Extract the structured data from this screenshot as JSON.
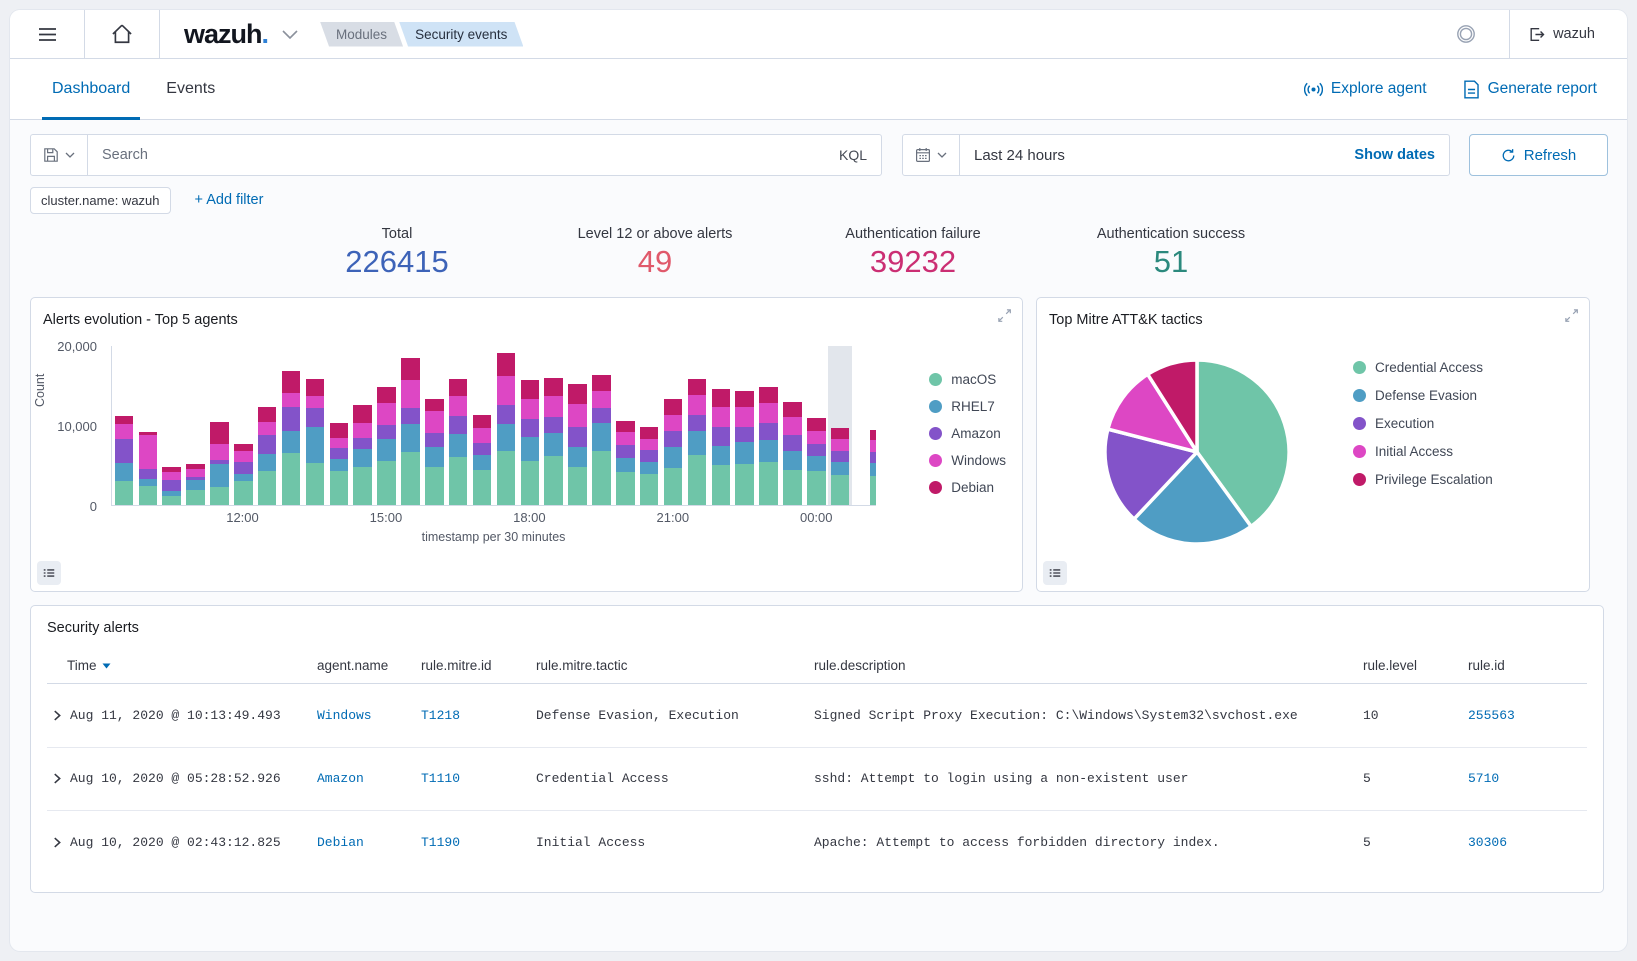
{
  "app": {
    "logo_text": "wazuh",
    "logo_dot": ".",
    "user_label": "wazuh"
  },
  "breadcrumbs": [
    {
      "label": "Modules"
    },
    {
      "label": "Security events"
    }
  ],
  "tabs": [
    {
      "label": "Dashboard",
      "active": true
    },
    {
      "label": "Events",
      "active": false
    }
  ],
  "header_actions": {
    "explore_agent": "Explore agent",
    "generate_report": "Generate report"
  },
  "search_bar": {
    "placeholder": "Search",
    "language": "KQL",
    "time_range": "Last 24 hours",
    "show_dates_label": "Show dates",
    "refresh_label": "Refresh"
  },
  "filter_bar": {
    "pill": "cluster.name: wazuh",
    "add_filter_label": "+ Add filter"
  },
  "stats": [
    {
      "label": "Total",
      "value": "226415",
      "color": "#3d63b8"
    },
    {
      "label": "Level 12 or above alerts",
      "value": "49",
      "color": "#e0596b"
    },
    {
      "label": "Authentication failure",
      "value": "39232",
      "color": "#cb2e73"
    },
    {
      "label": "Authentication success",
      "value": "51",
      "color": "#2b897d"
    }
  ],
  "panels": {
    "alerts_evolution": {
      "title": "Alerts evolution - Top 5 agents"
    },
    "mitre": {
      "title": "Top Mitre ATT&K tactics"
    }
  },
  "icons": {
    "menu": "hamburger",
    "home": "house",
    "chevron-down": "caret",
    "save-query": "floppy-disk",
    "calendar": "calendar",
    "refresh": "circular-arrow",
    "ring": "double-circle",
    "logout": "exit-door",
    "broadcast": "antenna",
    "report": "document",
    "expand": "diagonal-arrows",
    "legend-toggle": "list",
    "sort-desc": "triangle-down",
    "row-expand": "chevron-right",
    "page-next": "chevron-right-large"
  },
  "chart_data": [
    {
      "type": "bar",
      "stacked": true,
      "title": "Alerts evolution - Top 5 agents",
      "xlabel": "timestamp per 30 minutes",
      "ylabel": "Count",
      "ylim": [
        0,
        20000
      ],
      "ytick_labels": [
        "20,000",
        "10,000",
        "0"
      ],
      "grid": false,
      "legend_position": "right",
      "categories": [
        "09:30",
        "10:00",
        "10:30",
        "11:00",
        "11:30",
        "12:00",
        "12:30",
        "13:00",
        "13:30",
        "14:00",
        "14:30",
        "15:00",
        "15:30",
        "16:00",
        "16:30",
        "17:00",
        "17:30",
        "18:00",
        "18:30",
        "19:00",
        "19:30",
        "20:00",
        "20:30",
        "21:00",
        "21:30",
        "22:00",
        "22:30",
        "23:00",
        "23:30",
        "00:00",
        "00:30",
        "01:00"
      ],
      "x_ticks": [
        {
          "label": "12:00",
          "index": 5
        },
        {
          "label": "15:00",
          "index": 11
        },
        {
          "label": "18:00",
          "index": 17
        },
        {
          "label": "21:00",
          "index": 23
        },
        {
          "label": "00:00",
          "index": 29
        }
      ],
      "highlight_index": 30,
      "clipped_last": true,
      "series": [
        {
          "name": "macOS",
          "color": "#6fc5a8",
          "values": [
            3000,
            2400,
            1100,
            1900,
            2300,
            3000,
            4300,
            6500,
            5300,
            4200,
            4800,
            5500,
            6600,
            4800,
            6000,
            4400,
            6700,
            5500,
            6100,
            4700,
            6800,
            4100,
            3900,
            4600,
            6200,
            5000,
            5100,
            5400,
            4400,
            4200,
            3700,
            3600
          ]
        },
        {
          "name": "RHEL7",
          "color": "#4f9dc4",
          "values": [
            2200,
            900,
            700,
            1200,
            2800,
            900,
            2100,
            2700,
            4500,
            1600,
            2200,
            2800,
            3500,
            2500,
            2900,
            1800,
            3400,
            3000,
            2900,
            2500,
            3500,
            1800,
            1500,
            2600,
            3100,
            2400,
            2800,
            2700,
            2400,
            1900,
            1700,
            1600
          ]
        },
        {
          "name": "Amazon",
          "color": "#8353c9",
          "values": [
            3100,
            1200,
            1300,
            400,
            500,
            1500,
            2400,
            3000,
            2300,
            1300,
            1400,
            1700,
            2000,
            1700,
            2200,
            1600,
            2400,
            2300,
            2000,
            2600,
            1800,
            1600,
            1500,
            2000,
            1900,
            2300,
            1900,
            2100,
            1900,
            1500,
            1400,
            1400
          ]
        },
        {
          "name": "Windows",
          "color": "#dd47c4",
          "values": [
            1800,
            4300,
            1000,
            1000,
            2000,
            1400,
            1600,
            1800,
            1500,
            1300,
            1900,
            2700,
            3500,
            2700,
            2500,
            1800,
            3600,
            2500,
            2600,
            2800,
            2200,
            1600,
            1400,
            2000,
            2500,
            2600,
            2400,
            2500,
            2300,
            1700,
            1500,
            1500
          ]
        },
        {
          "name": "Debian",
          "color": "#c01a68",
          "values": [
            1000,
            300,
            600,
            600,
            2800,
            800,
            1900,
            2700,
            2100,
            1800,
            2200,
            2100,
            2800,
            1600,
            2200,
            1700,
            2900,
            2300,
            2300,
            2500,
            2000,
            1400,
            1500,
            2000,
            2100,
            2200,
            2100,
            2100,
            1900,
            1600,
            1300,
            1300
          ]
        }
      ]
    },
    {
      "type": "pie",
      "title": "Top Mitre ATT&K tactics",
      "labels": [
        "Credential Access",
        "Defense Evasion",
        "Execution",
        "Initial Access",
        "Privilege Escalation"
      ],
      "values": [
        40,
        22,
        17,
        12,
        9
      ],
      "unit": "percent (estimated from slice angles)",
      "colors": [
        "#6fc5a8",
        "#4f9dc4",
        "#8353c9",
        "#dd47c4",
        "#c01a68"
      ],
      "legend_position": "right"
    }
  ],
  "table": {
    "title": "Security alerts",
    "columns": [
      "Time",
      "agent.name",
      "rule.mitre.id",
      "rule.mitre.tactic",
      "rule.description",
      "rule.level",
      "rule.id"
    ],
    "rows": [
      {
        "time": "Aug 11, 2020 @ 10:13:49.493",
        "agent": "Windows",
        "mitre_id": "T1218",
        "tactic": "Defense Evasion, Execution",
        "description": "Signed Script Proxy Execution: C:\\Windows\\System32\\svchost.exe",
        "level": "10",
        "rule_id": "255563"
      },
      {
        "time": "Aug 10, 2020 @ 05:28:52.926",
        "agent": "Amazon",
        "mitre_id": "T1110",
        "tactic": "Credential Access",
        "description": "sshd: Attempt to login using a non-existent user",
        "level": "5",
        "rule_id": "5710"
      },
      {
        "time": "Aug 10, 2020 @ 02:43:12.825",
        "agent": "Debian",
        "mitre_id": "T1190",
        "tactic": "Initial Access",
        "description": "Apache: Attempt to access forbidden directory index.",
        "level": "5",
        "rule_id": "30306"
      }
    ]
  }
}
